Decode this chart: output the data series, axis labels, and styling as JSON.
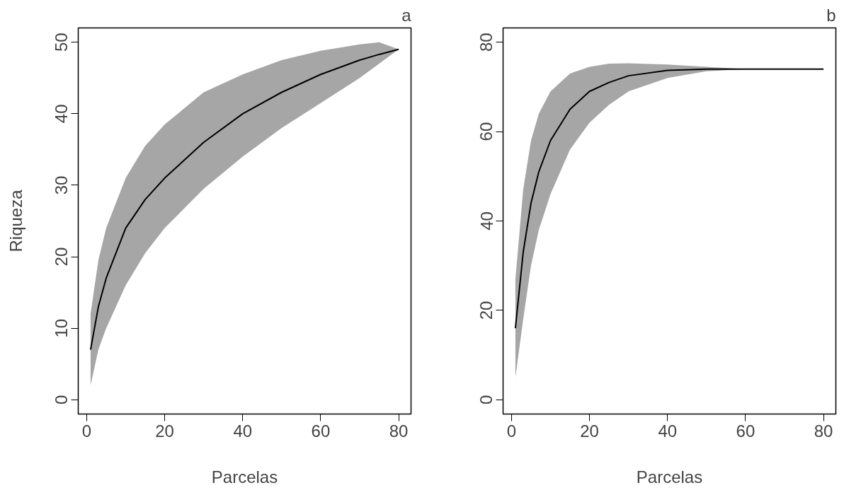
{
  "chart_data": [
    {
      "type": "line",
      "title": "a",
      "xlabel": "Parcelas",
      "ylabel": "Riqueza",
      "xlim": [
        -2.16,
        83.16
      ],
      "ylim": [
        -2,
        52
      ],
      "xticks": [
        0,
        20,
        40,
        60,
        80
      ],
      "yticks": [
        0,
        10,
        20,
        30,
        40,
        50
      ],
      "grid": false,
      "x": [
        1,
        3,
        5,
        10,
        15,
        20,
        30,
        40,
        50,
        60,
        70,
        75,
        80
      ],
      "series": [
        {
          "color": "#000000",
          "values": [
            7,
            13,
            17,
            24,
            28,
            31,
            36,
            40,
            43,
            45.5,
            47.5,
            48.3,
            49
          ],
          "lower": [
            2,
            7,
            10,
            16,
            20.5,
            24,
            29.5,
            34,
            38,
            41.5,
            45,
            47,
            49
          ],
          "upper": [
            12,
            19.5,
            24,
            31,
            35.5,
            38.5,
            43,
            45.5,
            47.5,
            48.8,
            49.7,
            50,
            49
          ]
        }
      ]
    },
    {
      "type": "line",
      "title": "b",
      "xlabel": "Parcelas",
      "xlim": [
        -2.16,
        83.16
      ],
      "ylim": [
        -3.2,
        83.2
      ],
      "xticks": [
        0,
        20,
        40,
        60,
        80
      ],
      "yticks": [
        0,
        20,
        40,
        60,
        80
      ],
      "grid": false,
      "x": [
        1,
        3,
        5,
        7,
        10,
        15,
        20,
        25,
        30,
        40,
        50,
        60,
        70,
        80
      ],
      "series": [
        {
          "color": "#000000",
          "values": [
            16,
            33,
            44,
            51,
            58,
            65,
            69,
            71,
            72.5,
            73.7,
            74,
            74,
            74,
            74
          ],
          "lower": [
            5,
            18,
            30,
            38,
            46,
            56,
            62,
            66,
            69,
            72,
            73.5,
            74,
            74,
            74
          ],
          "upper": [
            27,
            47,
            58,
            64,
            69,
            73,
            74.5,
            75.2,
            75.3,
            75,
            74.5,
            74,
            74,
            74
          ]
        }
      ]
    }
  ]
}
